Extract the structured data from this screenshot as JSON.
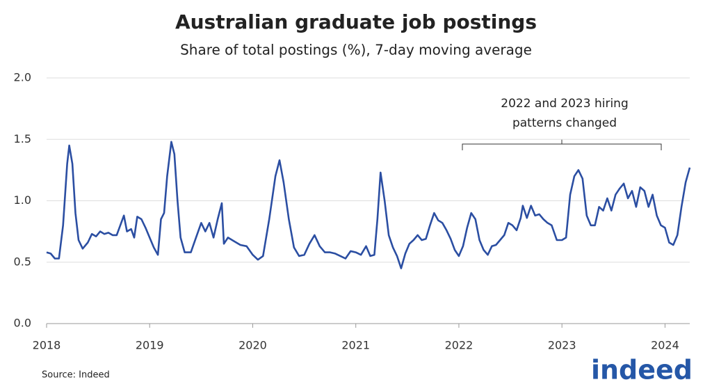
{
  "chart_data": {
    "type": "line",
    "title": "Australian graduate job postings",
    "subtitle": "Share of total postings (%), 7-day moving average",
    "annotation": [
      "2022 and 2023 hiring",
      "patterns changed"
    ],
    "source": "Source: Indeed",
    "logo": "indeed",
    "color": "#2b4ea2",
    "grid": true,
    "xlim": [
      2018,
      2024.24
    ],
    "xticks": [
      2018,
      2019,
      2020,
      2021,
      2022,
      2023,
      2024
    ],
    "ylim": [
      0,
      2
    ],
    "yticks": [
      {
        "value": 0,
        "label": "0.0"
      },
      {
        "value": 0.5,
        "label": "0.5"
      },
      {
        "value": 1,
        "label": "1.0"
      },
      {
        "value": 1.5,
        "label": "1.5"
      },
      {
        "value": 2,
        "label": "2.0"
      }
    ],
    "x": [
      2018.0,
      2018.04,
      2018.08,
      2018.12,
      2018.16,
      2018.2,
      2018.22,
      2018.25,
      2018.28,
      2018.31,
      2018.35,
      2018.4,
      2018.44,
      2018.48,
      2018.52,
      2018.56,
      2018.6,
      2018.64,
      2018.68,
      2018.75,
      2018.78,
      2018.82,
      2018.85,
      2018.88,
      2018.92,
      2018.96,
      2019.0,
      2019.04,
      2019.08,
      2019.11,
      2019.14,
      2019.17,
      2019.21,
      2019.24,
      2019.27,
      2019.3,
      2019.34,
      2019.4,
      2019.45,
      2019.5,
      2019.54,
      2019.58,
      2019.62,
      2019.66,
      2019.7,
      2019.72,
      2019.76,
      2019.82,
      2019.88,
      2019.94,
      2020.0,
      2020.05,
      2020.1,
      2020.16,
      2020.22,
      2020.26,
      2020.3,
      2020.35,
      2020.4,
      2020.45,
      2020.5,
      2020.55,
      2020.6,
      2020.65,
      2020.7,
      2020.75,
      2020.8,
      2020.85,
      2020.9,
      2020.95,
      2021.0,
      2021.05,
      2021.1,
      2021.14,
      2021.18,
      2021.21,
      2021.24,
      2021.28,
      2021.32,
      2021.36,
      2021.4,
      2021.44,
      2021.48,
      2021.52,
      2021.56,
      2021.6,
      2021.64,
      2021.68,
      2021.72,
      2021.76,
      2021.8,
      2021.84,
      2021.88,
      2021.92,
      2021.96,
      2022.0,
      2022.04,
      2022.08,
      2022.12,
      2022.16,
      2022.2,
      2022.24,
      2022.28,
      2022.32,
      2022.36,
      2022.4,
      2022.44,
      2022.48,
      2022.52,
      2022.56,
      2022.6,
      2022.62,
      2022.66,
      2022.7,
      2022.74,
      2022.78,
      2022.82,
      2022.86,
      2022.9,
      2022.95,
      2023.0,
      2023.04,
      2023.08,
      2023.12,
      2023.16,
      2023.2,
      2023.24,
      2023.28,
      2023.32,
      2023.36,
      2023.4,
      2023.44,
      2023.48,
      2023.52,
      2023.56,
      2023.6,
      2023.64,
      2023.68,
      2023.72,
      2023.76,
      2023.8,
      2023.84,
      2023.88,
      2023.92,
      2023.96,
      2024.0,
      2024.04,
      2024.08,
      2024.12,
      2024.16,
      2024.2,
      2024.24
    ],
    "values": [
      0.58,
      0.57,
      0.53,
      0.53,
      0.8,
      1.3,
      1.45,
      1.3,
      0.9,
      0.68,
      0.61,
      0.66,
      0.73,
      0.71,
      0.75,
      0.73,
      0.74,
      0.72,
      0.72,
      0.88,
      0.75,
      0.77,
      0.7,
      0.87,
      0.85,
      0.78,
      0.7,
      0.62,
      0.56,
      0.85,
      0.9,
      1.2,
      1.48,
      1.38,
      1.0,
      0.7,
      0.58,
      0.58,
      0.7,
      0.82,
      0.75,
      0.82,
      0.7,
      0.85,
      0.98,
      0.65,
      0.7,
      0.67,
      0.64,
      0.63,
      0.56,
      0.52,
      0.55,
      0.85,
      1.2,
      1.33,
      1.15,
      0.85,
      0.62,
      0.55,
      0.56,
      0.65,
      0.72,
      0.63,
      0.58,
      0.58,
      0.57,
      0.55,
      0.53,
      0.59,
      0.58,
      0.56,
      0.63,
      0.55,
      0.56,
      0.85,
      1.23,
      1.0,
      0.72,
      0.62,
      0.55,
      0.45,
      0.57,
      0.65,
      0.68,
      0.72,
      0.68,
      0.69,
      0.8,
      0.9,
      0.84,
      0.82,
      0.76,
      0.69,
      0.6,
      0.55,
      0.63,
      0.78,
      0.9,
      0.85,
      0.68,
      0.6,
      0.56,
      0.63,
      0.64,
      0.68,
      0.72,
      0.82,
      0.8,
      0.76,
      0.86,
      0.96,
      0.86,
      0.96,
      0.88,
      0.89,
      0.85,
      0.82,
      0.8,
      0.68,
      0.68,
      0.7,
      1.05,
      1.2,
      1.25,
      1.18,
      0.88,
      0.8,
      0.8,
      0.95,
      0.92,
      1.02,
      0.92,
      1.05,
      1.1,
      1.14,
      1.02,
      1.08,
      0.95,
      1.11,
      1.08,
      0.95,
      1.05,
      0.88,
      0.8,
      0.78,
      0.66,
      0.64,
      0.72,
      0.95,
      1.15,
      1.27
    ]
  }
}
